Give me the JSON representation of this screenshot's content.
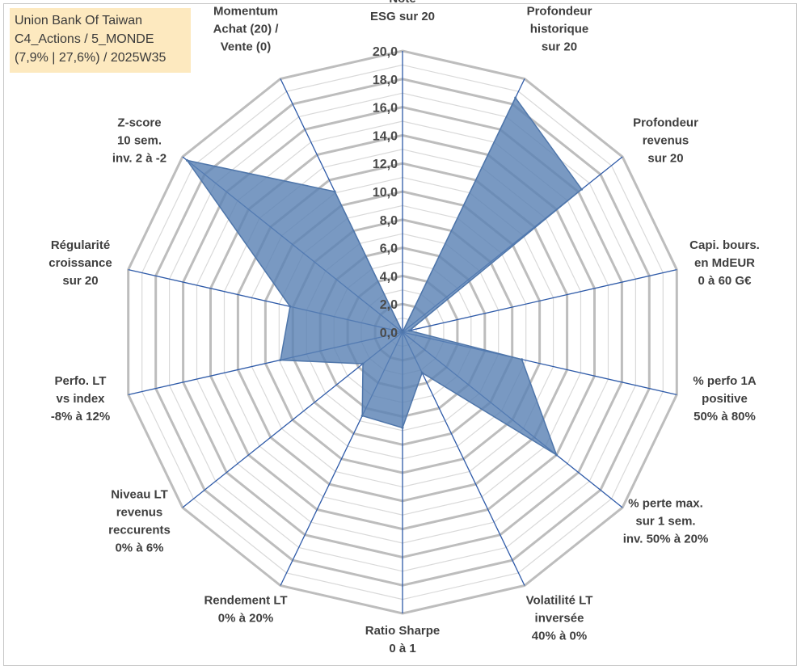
{
  "header": {
    "line1": "Union Bank Of Taiwan",
    "line2": "C4_Actions / 5_MONDE",
    "line3": "(7,9% | 27,6%) / 2025W35"
  },
  "colors": {
    "fill": "#5b82b4",
    "axis": "#2e5aa8",
    "grid_major": "#bdbdbd",
    "grid_minor": "#d9d9d9",
    "title_bg": "#fde9bf"
  },
  "chart_data": {
    "type": "radar",
    "title": "",
    "rlim": [
      0,
      20
    ],
    "ticks": [
      "0,0",
      "2,0",
      "4,0",
      "6,0",
      "8,0",
      "10,0",
      "12,0",
      "14,0",
      "16,0",
      "18,0",
      "20,0"
    ],
    "grid": true,
    "categories": [
      [
        "Note",
        "ESG sur 20"
      ],
      [
        "Profondeur",
        "historique",
        "sur 20"
      ],
      [
        "Profondeur",
        "revenus",
        "sur 20"
      ],
      [
        "Capi. bours.",
        "en MdEUR",
        "0 à 60 G€"
      ],
      [
        "% perfo 1A",
        "positive",
        "50% à 80%"
      ],
      [
        "% perte max.",
        "sur 1 sem.",
        "inv. 50% à 20%"
      ],
      [
        "Volatilité LT",
        "inversée",
        "40% à 0%"
      ],
      [
        "Ratio Sharpe",
        "0 à 1"
      ],
      [
        "Rendement LT",
        "0% à 20%"
      ],
      [
        "Niveau LT",
        "revenus",
        "reccurents",
        "0% à 6%"
      ],
      [
        "Perfo. LT",
        "vs index",
        "-8% à 12%"
      ],
      [
        "Régularité",
        "croissance",
        "sur 20"
      ],
      [
        "Z-score",
        "10 sem.",
        "inv. 2 à -2"
      ],
      [
        "Momentum",
        "Achat (20) /",
        "Vente (0)"
      ]
    ],
    "values": [
      0,
      18.5,
      16.3,
      0.5,
      8.7,
      14.0,
      3.2,
      6.8,
      6.6,
      3.6,
      8.9,
      8.2,
      19.6,
      11.1
    ]
  }
}
